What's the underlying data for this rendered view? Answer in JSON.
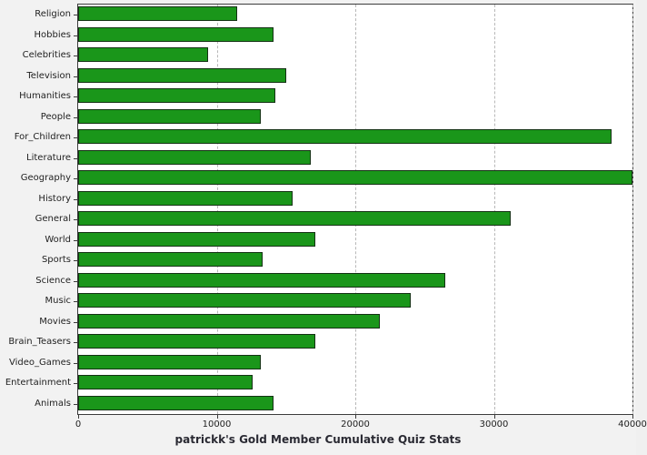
{
  "chart_data": {
    "type": "bar",
    "orientation": "horizontal",
    "title": "patrickk's Gold Member Cumulative Quiz Stats",
    "categories": [
      "Religion",
      "Hobbies",
      "Celebrities",
      "Television",
      "Humanities",
      "People",
      "For_Children",
      "Literature",
      "Geography",
      "History",
      "General",
      "World",
      "Sports",
      "Science",
      "Music",
      "Movies",
      "Brain_Teasers",
      "Video_Games",
      "Entertainment",
      "Animals"
    ],
    "values": [
      11500,
      14100,
      9400,
      15000,
      14200,
      13200,
      38500,
      16800,
      40000,
      15500,
      31200,
      17100,
      13300,
      26500,
      24000,
      21800,
      17100,
      13200,
      12600,
      14100
    ],
    "xlabel": "",
    "ylabel": "",
    "xlim": [
      0,
      40000
    ],
    "x_ticks": [
      0,
      10000,
      20000,
      30000,
      40000
    ],
    "grid": "dashed-vertical",
    "legend": "none",
    "bar_color": "#1a961a",
    "bar_border_color": "#143214",
    "title_color": "#2a2a33",
    "plot_background": "#ffffff",
    "page_background": "#f2f2f2"
  }
}
